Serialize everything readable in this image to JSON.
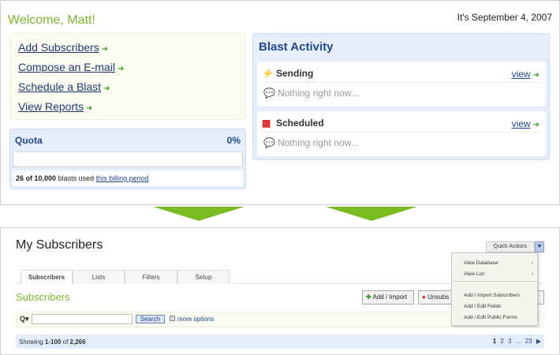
{
  "dashboard": {
    "welcome": "Welcome, Matt!",
    "date": "It's September 4, 2007",
    "links": [
      "Add Subscribers",
      "Compose an E-mail",
      "Schedule a Blast",
      "View Reports"
    ],
    "quota": {
      "title": "Quota",
      "percent_label": "0%",
      "percent": 0,
      "used": "26 of 10,000",
      "used_text": "blasts used",
      "link": "this billing period"
    },
    "blast_activity": {
      "title": "Blast Activity",
      "cards": [
        {
          "title": "Sending",
          "icon": "lightning-icon",
          "view": "view",
          "status": "Nothing right now..."
        },
        {
          "title": "Scheduled",
          "icon": "calendar-icon",
          "view": "view",
          "status": "Nothing right now..."
        }
      ]
    }
  },
  "subscribers_page": {
    "title": "My Subscribers",
    "quick_actions": "Quick Actions",
    "tabs": [
      "Subscribers",
      "Lists",
      "Filters",
      "Setup"
    ],
    "active_tab": "Subscribers",
    "section_title": "Subscribers",
    "buttons": {
      "add_import": "Add / Import",
      "unsubscribe": "Unsubs",
      "export_tail": "rt"
    },
    "search": {
      "value": "",
      "button": "Search",
      "more_options": "more options"
    },
    "showing": {
      "prefix": "Showing",
      "range": "1-100",
      "of": "of",
      "total": "2,266"
    },
    "pages": [
      "1",
      "2",
      "3",
      "...",
      "23"
    ],
    "dropdown": [
      "View Database",
      "View List",
      "Add / Import Subscribers",
      "Add / Edit Fields",
      "Add / Edit Public Forms"
    ]
  },
  "colors": {
    "green": "#7ab929",
    "blue": "#22498f",
    "panel_blue": "#e6eefb"
  }
}
